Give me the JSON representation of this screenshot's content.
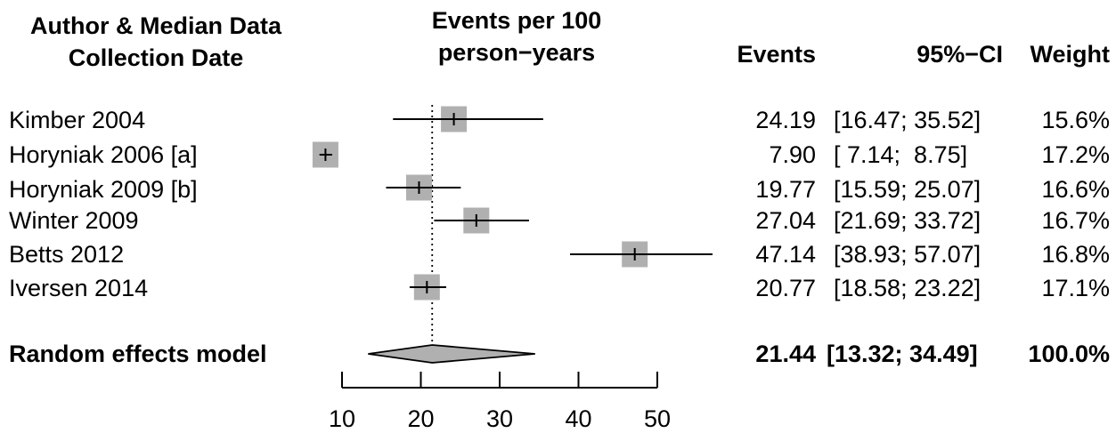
{
  "headers": {
    "study_line1": "Author & Median Data",
    "study_line2": "Collection Date",
    "effect_line1": "Events per 100",
    "effect_line2": "person−years",
    "events": "Events",
    "ci": "95%−CI",
    "weight": "Weight"
  },
  "chart_data": {
    "type": "forest",
    "reference_line": 21.44,
    "xlim": [
      10,
      50
    ],
    "xticks": [
      10,
      20,
      30,
      40,
      50
    ],
    "xtick_labels": [
      "10",
      "20",
      "30",
      "40",
      "50"
    ],
    "studies": [
      {
        "label": "Kimber 2004",
        "estimate": 24.19,
        "lower": 16.47,
        "upper": 35.52,
        "events_text": "24.19",
        "ci_text": "[16.47; 35.52]",
        "weight": 15.6,
        "weight_text": "15.6%"
      },
      {
        "label": "Horyniak 2006 [a]",
        "estimate": 7.9,
        "lower": 7.14,
        "upper": 8.75,
        "events_text": "7.90",
        "ci_text": "[ 7.14;  8.75]",
        "weight": 17.2,
        "weight_text": "17.2%"
      },
      {
        "label": "Horyniak 2009 [b]",
        "estimate": 19.77,
        "lower": 15.59,
        "upper": 25.07,
        "events_text": "19.77",
        "ci_text": "[15.59; 25.07]",
        "weight": 16.6,
        "weight_text": "16.6%"
      },
      {
        "label": "Winter 2009",
        "estimate": 27.04,
        "lower": 21.69,
        "upper": 33.72,
        "events_text": "27.04",
        "ci_text": "[21.69; 33.72]",
        "weight": 16.7,
        "weight_text": "16.7%"
      },
      {
        "label": "Betts 2012",
        "estimate": 47.14,
        "lower": 38.93,
        "upper": 57.07,
        "events_text": "47.14",
        "ci_text": "[38.93; 57.07]",
        "weight": 16.8,
        "weight_text": "16.8%"
      },
      {
        "label": "Iversen 2014",
        "estimate": 20.77,
        "lower": 18.58,
        "upper": 23.22,
        "events_text": "20.77",
        "ci_text": "[18.58; 23.22]",
        "weight": 17.1,
        "weight_text": "17.1%"
      }
    ],
    "pooled": {
      "label": "Random effects model",
      "estimate": 21.44,
      "lower": 13.32,
      "upper": 34.49,
      "events_text": "21.44",
      "ci_text": "[13.32; 34.49]",
      "weight_text": "100.0%"
    },
    "colors": {
      "box": "#b0b0b0",
      "diamond": "#b0b0b0",
      "line": "#000000"
    }
  }
}
